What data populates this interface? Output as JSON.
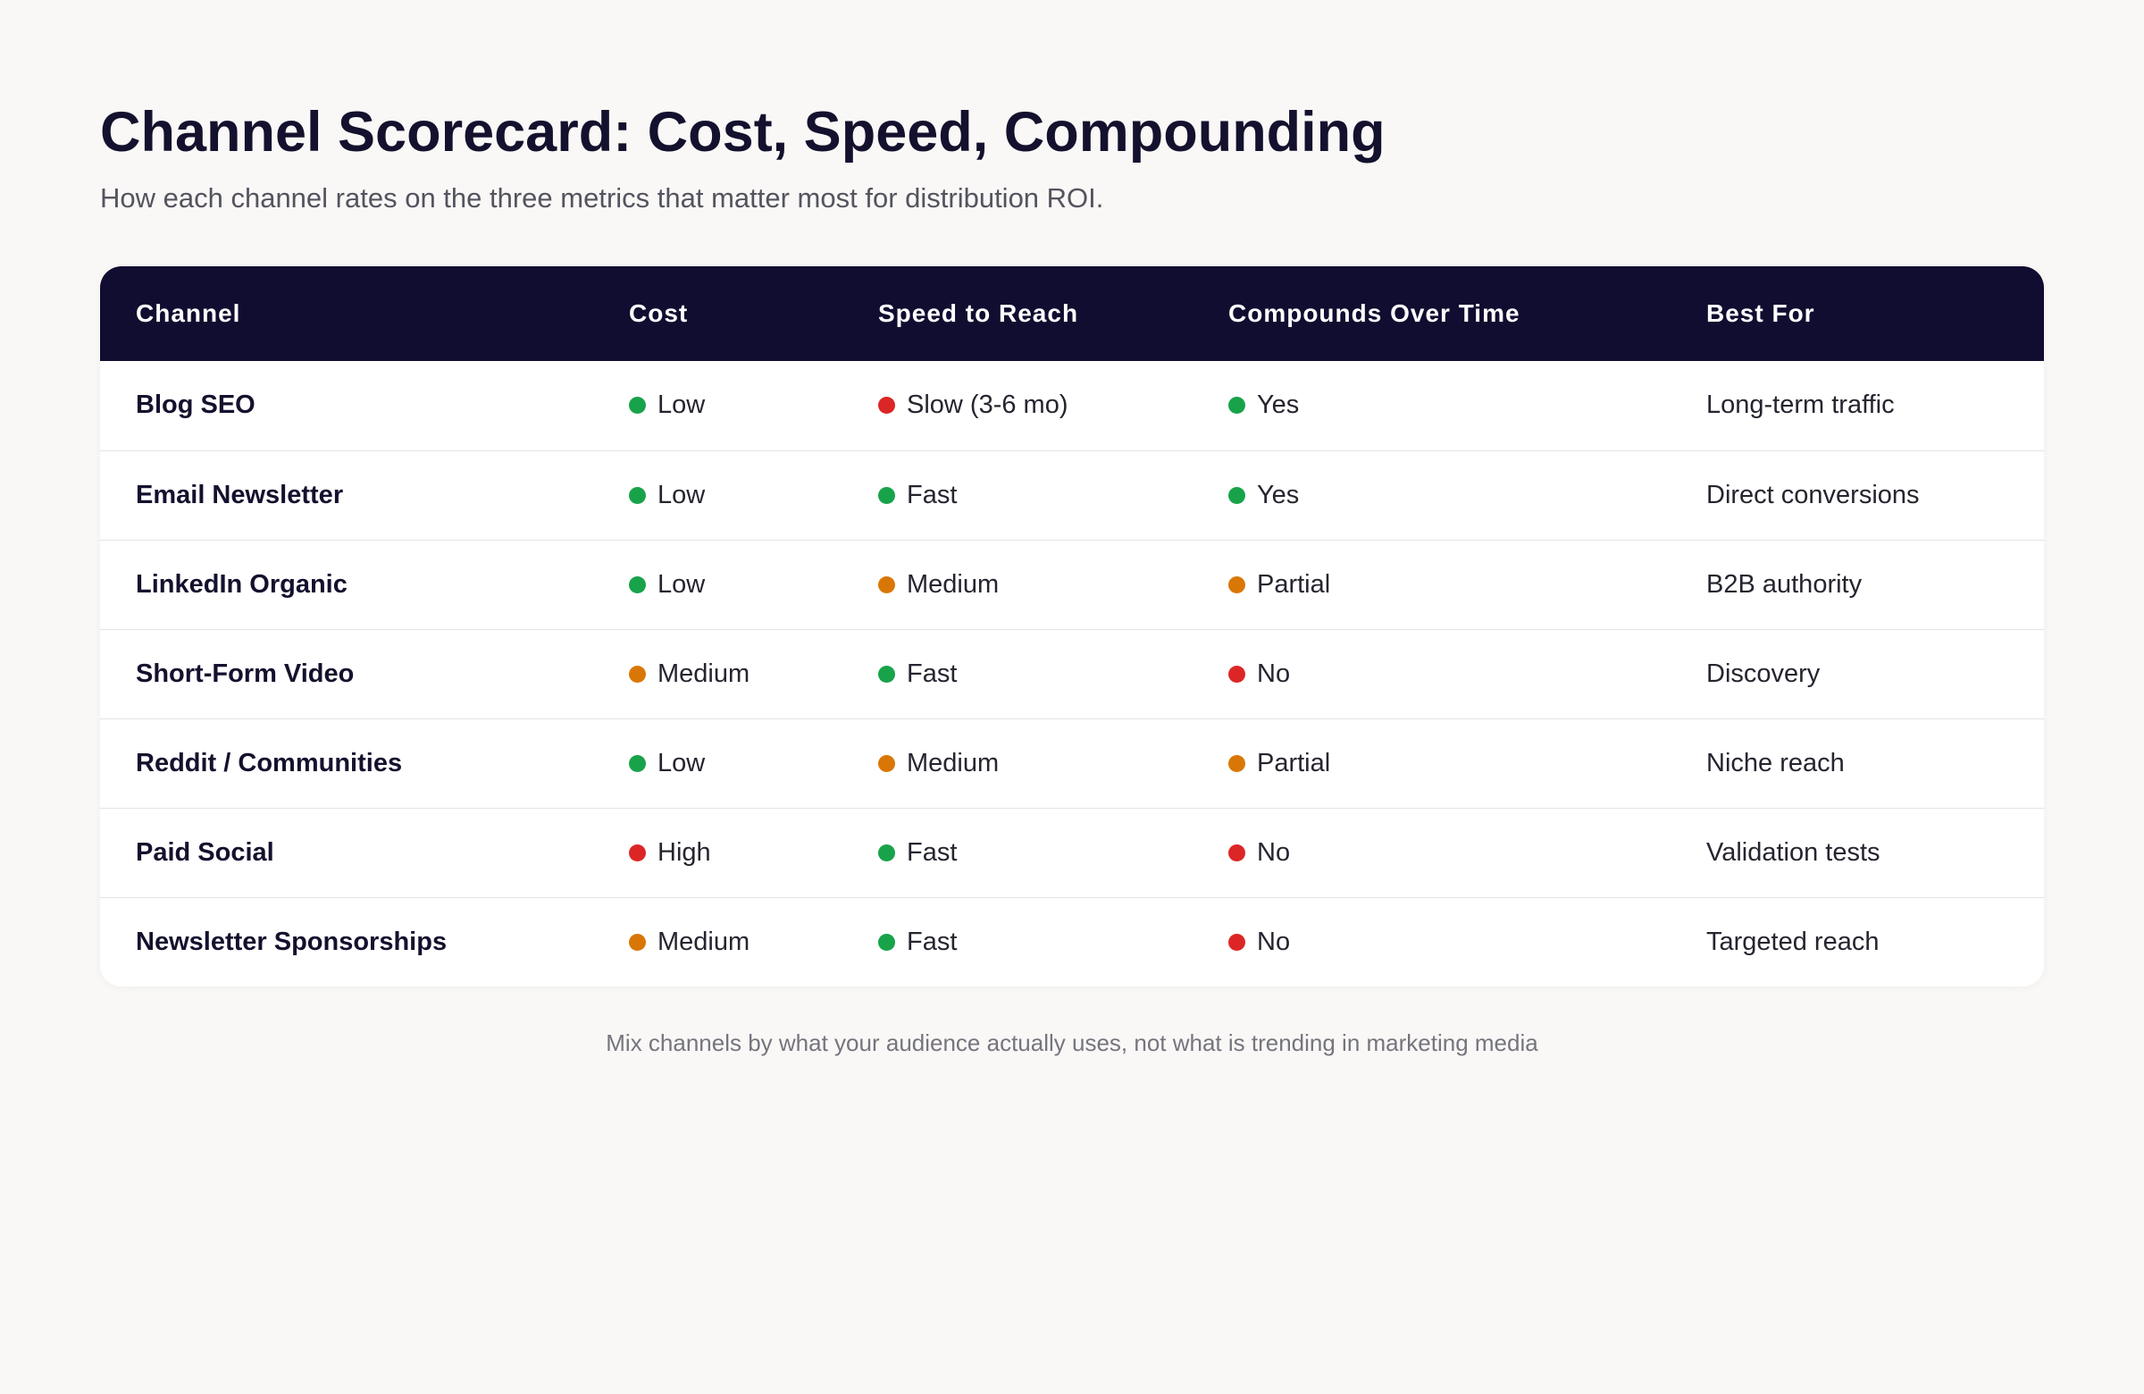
{
  "title": "Channel Scorecard: Cost, Speed, Compounding",
  "subtitle": "How each channel rates on the three metrics that matter most for distribution ROI.",
  "colors": {
    "green": "#18a34a",
    "orange": "#d97706",
    "red": "#dc2626",
    "header_bg": "#110d30"
  },
  "table": {
    "headers": [
      "Channel",
      "Cost",
      "Speed to Reach",
      "Compounds Over Time",
      "Best For"
    ],
    "rows": [
      {
        "channel": "Blog SEO",
        "cost": {
          "label": "Low",
          "status": "green"
        },
        "speed": {
          "label": "Slow (3-6 mo)",
          "status": "red"
        },
        "compounds": {
          "label": "Yes",
          "status": "green"
        },
        "best_for": "Long-term traffic"
      },
      {
        "channel": "Email Newsletter",
        "cost": {
          "label": "Low",
          "status": "green"
        },
        "speed": {
          "label": "Fast",
          "status": "green"
        },
        "compounds": {
          "label": "Yes",
          "status": "green"
        },
        "best_for": "Direct conversions"
      },
      {
        "channel": "LinkedIn Organic",
        "cost": {
          "label": "Low",
          "status": "green"
        },
        "speed": {
          "label": "Medium",
          "status": "orange"
        },
        "compounds": {
          "label": "Partial",
          "status": "orange"
        },
        "best_for": "B2B authority"
      },
      {
        "channel": "Short-Form Video",
        "cost": {
          "label": "Medium",
          "status": "orange"
        },
        "speed": {
          "label": "Fast",
          "status": "green"
        },
        "compounds": {
          "label": "No",
          "status": "red"
        },
        "best_for": "Discovery"
      },
      {
        "channel": "Reddit / Communities",
        "cost": {
          "label": "Low",
          "status": "green"
        },
        "speed": {
          "label": "Medium",
          "status": "orange"
        },
        "compounds": {
          "label": "Partial",
          "status": "orange"
        },
        "best_for": "Niche reach"
      },
      {
        "channel": "Paid Social",
        "cost": {
          "label": "High",
          "status": "red"
        },
        "speed": {
          "label": "Fast",
          "status": "green"
        },
        "compounds": {
          "label": "No",
          "status": "red"
        },
        "best_for": "Validation tests"
      },
      {
        "channel": "Newsletter Sponsorships",
        "cost": {
          "label": "Medium",
          "status": "orange"
        },
        "speed": {
          "label": "Fast",
          "status": "green"
        },
        "compounds": {
          "label": "No",
          "status": "red"
        },
        "best_for": "Targeted reach"
      }
    ]
  },
  "footnote": "Mix channels by what your audience actually uses, not what is trending in marketing media"
}
